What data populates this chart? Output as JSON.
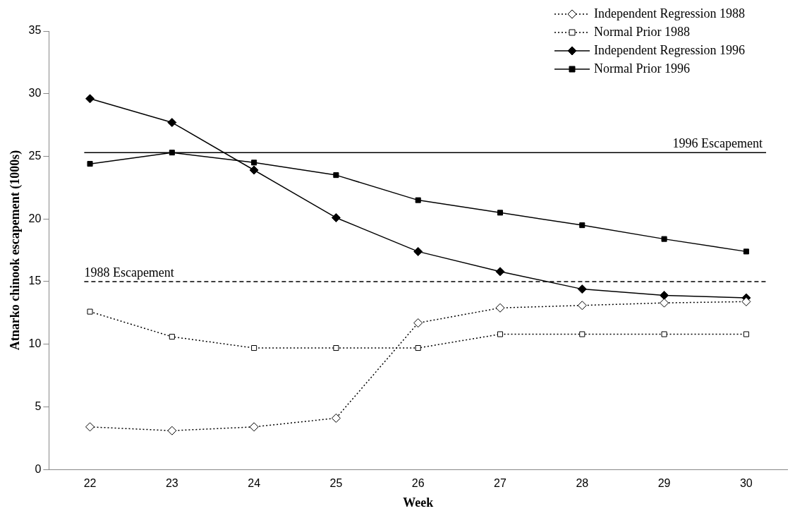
{
  "chart_data": {
    "type": "line",
    "xlabel": "Week",
    "ylabel": "Atnarko chinook escapement (1000s)",
    "categories": [
      "22",
      "23",
      "24",
      "25",
      "26",
      "27",
      "28",
      "29",
      "30"
    ],
    "series": [
      {
        "name": "Independent Regression 1988",
        "color": "#000000",
        "marker": "diamond",
        "line_style": "dotted",
        "values": [
          3.4,
          3.1,
          3.4,
          4.1,
          11.7,
          12.9,
          13.1,
          13.3,
          13.4
        ]
      },
      {
        "name": "Normal Prior 1988",
        "color": "#000000",
        "marker": "square",
        "line_style": "dotted",
        "values": [
          12.6,
          10.6,
          9.7,
          9.7,
          9.7,
          10.8,
          10.8,
          10.8,
          10.8
        ]
      },
      {
        "name": "Independent Regression 1996",
        "color": "#000000",
        "marker": "diamond",
        "line_style": "solid",
        "values": [
          29.6,
          27.7,
          23.9,
          20.1,
          17.4,
          15.8,
          14.4,
          13.9,
          13.7
        ]
      },
      {
        "name": "Normal Prior 1996",
        "color": "#000000",
        "marker": "square",
        "line_style": "solid",
        "values": [
          24.4,
          25.3,
          24.5,
          23.5,
          21.5,
          20.5,
          19.5,
          18.4,
          17.4
        ]
      }
    ],
    "ref_lines": [
      {
        "axis": "y",
        "value": 25.3,
        "label": "1996 Escapement",
        "line_style": "solid",
        "color": "#000000"
      },
      {
        "axis": "y",
        "value": 15.0,
        "label": "1988 Escapement",
        "line_style": "dashed",
        "color": "#000000"
      }
    ],
    "ylim": [
      0,
      35
    ],
    "yticks": [
      0,
      5,
      10,
      15,
      20,
      25,
      30,
      35
    ],
    "grid": false,
    "legend": "top right"
  }
}
